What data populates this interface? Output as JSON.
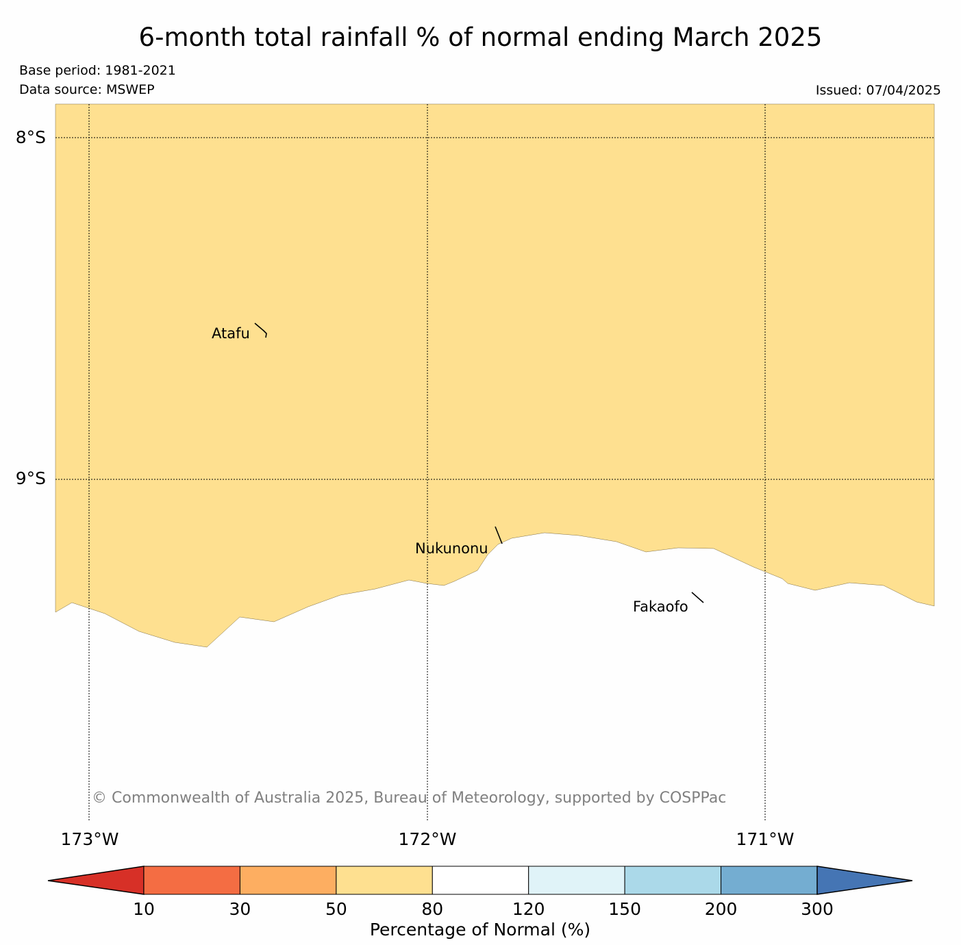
{
  "header": {
    "title": "6-month total rainfall % of normal ending March 2025",
    "base_period": "Base period: 1981-2021",
    "data_source": "Data source: MSWEP",
    "issued": "Issued: 07/04/2025"
  },
  "map": {
    "lat_labels": [
      "8°S",
      "9°S"
    ],
    "lon_labels": [
      "173°W",
      "172°W",
      "171°W"
    ],
    "places": [
      "Atafu",
      "Nukunonu",
      "Fakaofo"
    ],
    "copyright": "© Commonwealth of Australia 2025, Bureau of Meteorology, supported by COSPPac",
    "region_classes": {
      "upper": "50–80",
      "lower": "80–120"
    }
  },
  "colorbar": {
    "label": "Percentage of Normal (%)",
    "ticks": [
      "10",
      "30",
      "50",
      "80",
      "120",
      "150",
      "200",
      "300"
    ],
    "colors": {
      "under": "#d73027",
      "bins": [
        "#f46d43",
        "#fdae61",
        "#fee090",
        "#ffffff",
        "#e0f3f8",
        "#abd9e9",
        "#74add1"
      ],
      "over": "#4575b4"
    }
  }
}
